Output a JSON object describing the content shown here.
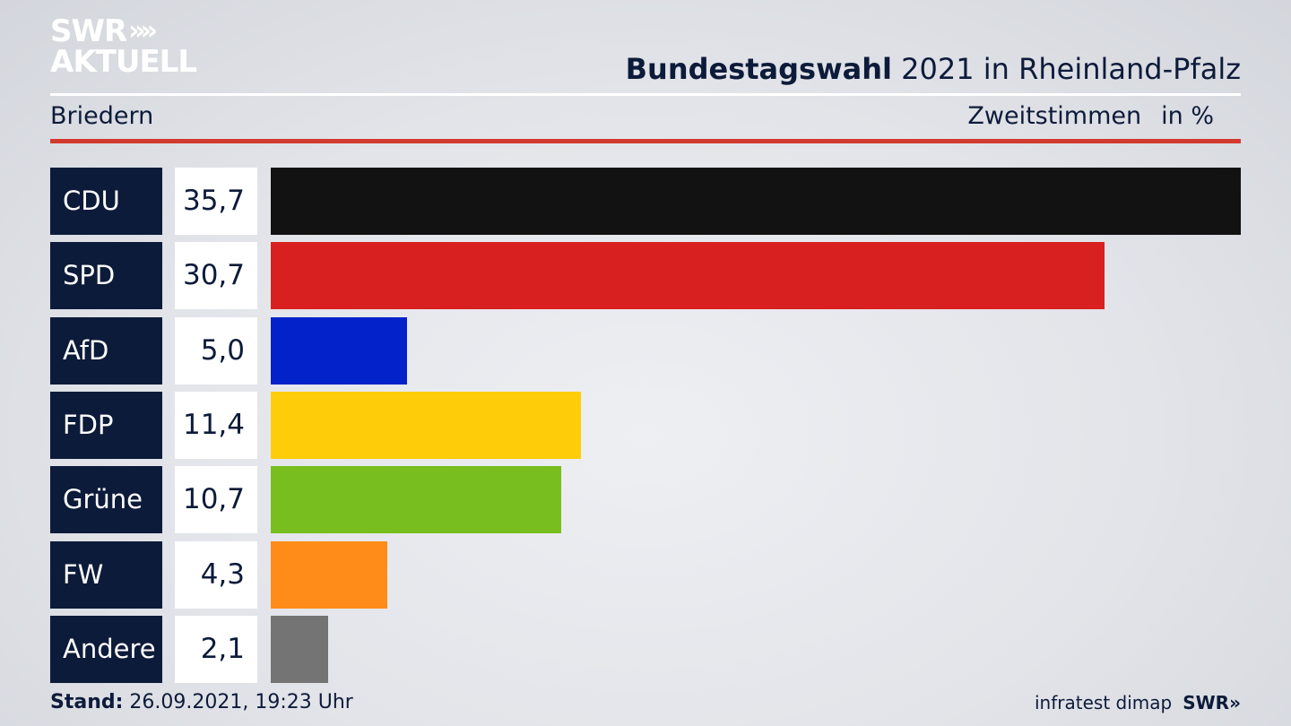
{
  "brand": {
    "line1": "SWR",
    "line2": "AKTUELL",
    "chevrons": "»"
  },
  "header": {
    "title_bold": "Bundestagswahl",
    "title_rest": " 2021 in Rheinland-Pfalz"
  },
  "subheader": {
    "region": "Briedern",
    "metric": "Zweitstimmen",
    "unit": "in %"
  },
  "footer": {
    "stand_label": "Stand:",
    "stand_value": " 26.09.2021, 19:23 Uhr",
    "source": "infratest dimap",
    "brand": "SWR»"
  },
  "chart_data": {
    "type": "bar",
    "orientation": "horizontal",
    "categories": [
      "CDU",
      "SPD",
      "AfD",
      "FDP",
      "Grüne",
      "FW",
      "Andere"
    ],
    "values": [
      35.7,
      30.7,
      5.0,
      11.4,
      10.7,
      4.3,
      2.1
    ],
    "labels": [
      "35,7",
      "30,7",
      "5,0",
      "11,4",
      "10,7",
      "4,3",
      "2,1"
    ],
    "colors": [
      "#121212",
      "#d82020",
      "#0422c9",
      "#ffcc0a",
      "#78be1e",
      "#ff8c19",
      "#747474"
    ],
    "xlim": [
      0,
      35.7
    ]
  }
}
